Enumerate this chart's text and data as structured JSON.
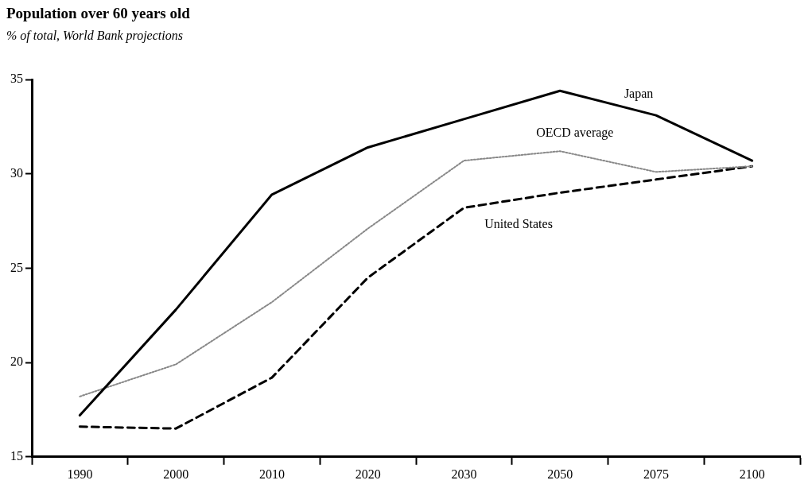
{
  "chart_data": {
    "type": "line",
    "title": "Population over 60 years old",
    "subtitle": "% of total, World Bank projections",
    "categories": [
      "1990",
      "2000",
      "2010",
      "2020",
      "2030",
      "2050",
      "2075",
      "2100"
    ],
    "series": [
      {
        "name": "Japan",
        "color": "#000000",
        "line_style": "solid",
        "values": [
          17.2,
          22.8,
          28.9,
          31.4,
          32.9,
          34.4,
          33.1,
          30.7
        ]
      },
      {
        "name": "OECD average",
        "color": "#888888",
        "line_style": "dotted",
        "values": [
          18.2,
          19.9,
          23.2,
          27.1,
          30.7,
          31.2,
          30.1,
          30.4
        ]
      },
      {
        "name": "United States",
        "color": "#000000",
        "line_style": "dashed",
        "values": [
          16.6,
          16.5,
          19.2,
          24.5,
          28.2,
          29.0,
          29.7,
          30.4
        ]
      }
    ],
    "ylim": [
      15,
      35
    ],
    "yticks": [
      15,
      20,
      25,
      30,
      35
    ],
    "grid": false,
    "legend": false,
    "marker": "none"
  }
}
